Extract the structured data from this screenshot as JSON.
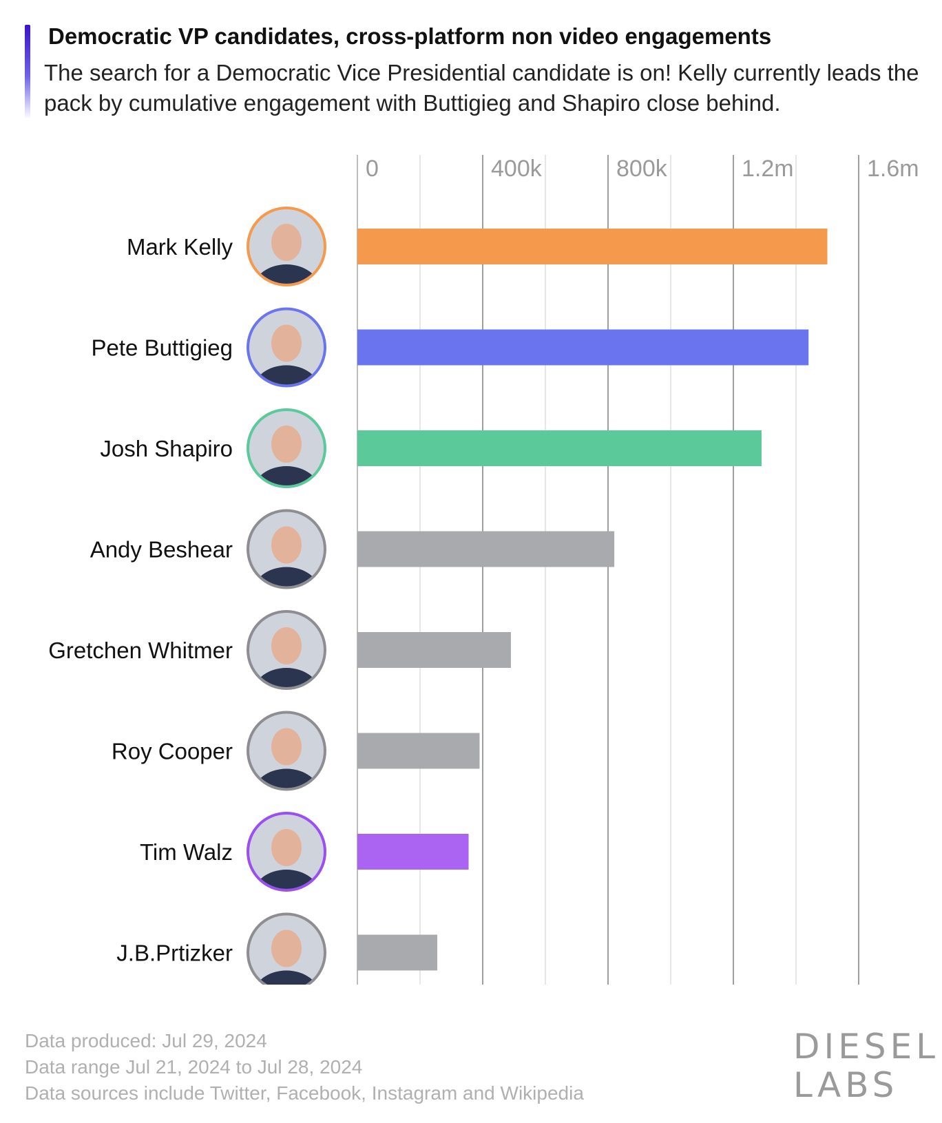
{
  "title": "Democratic VP candidates, cross-platform non video engagements",
  "subtitle": "The search for a Democratic Vice Presidential candidate is on! Kelly currently leads the pack by cumulative engagement with Buttigieg and Shapiro close behind.",
  "footer": {
    "produced": "Data produced: Jul 29, 2024",
    "range": "Data range Jul 21, 2024 to Jul 28, 2024",
    "sources": "Data sources include Twitter, Facebook, Instagram and Wikipedia"
  },
  "logo": {
    "line1": "DIESEL",
    "line2": "LABS"
  },
  "chart_data": {
    "type": "bar",
    "orientation": "horizontal",
    "title": "Democratic VP candidates, cross-platform non video engagements",
    "xlabel": "",
    "ylabel": "",
    "xlim": [
      0,
      1600000
    ],
    "major_ticks": [
      0,
      400000,
      800000,
      1200000,
      1600000
    ],
    "tick_labels": [
      "0",
      "400k",
      "800k",
      "1.2m",
      "1.6m"
    ],
    "minor_gridlines": [
      200000,
      600000,
      1000000,
      1400000
    ],
    "categories": [
      "Mark Kelly",
      "Pete Buttigieg",
      "Josh Shapiro",
      "Andy Beshear",
      "Gretchen Whitmer",
      "Roy Cooper",
      "Tim Walz",
      "J.B.Prtizker"
    ],
    "values": [
      1500000,
      1440000,
      1290000,
      820000,
      490000,
      390000,
      355000,
      255000
    ],
    "colors": [
      "#f59a4c",
      "#6b74ef",
      "#5cc99a",
      "#a9aaad",
      "#a9aaad",
      "#a9aaad",
      "#ab63f2",
      "#a9aaad"
    ],
    "avatar_colors": [
      "#f59a4c",
      "#6b74ef",
      "#5cc99a",
      "#8e8e92",
      "#8e8e92",
      "#8e8e92",
      "#9b4ff0",
      "#8e8e92"
    ]
  }
}
